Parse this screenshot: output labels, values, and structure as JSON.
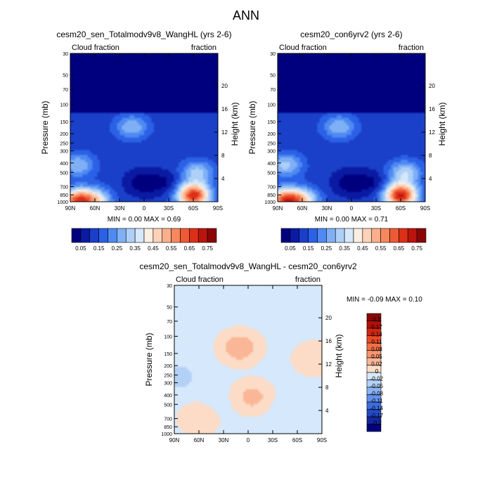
{
  "figure_title": "ANN",
  "chart_data": [
    {
      "type": "heatmap",
      "title": "cesm20_sen_Totalmodv9v8_WangHL (yrs 2-6)",
      "left_label": "Cloud fraction",
      "right_label": "fraction",
      "ylabel": "Pressure (mb)",
      "y2label": "Height (km)",
      "x_ticks": [
        "90N",
        "60N",
        "30N",
        "0",
        "30S",
        "60S",
        "90S"
      ],
      "y_ticks": [
        "30",
        "50",
        "70",
        "100",
        "150",
        "200",
        "250",
        "300",
        "400",
        "500",
        "700",
        "850",
        "1000"
      ],
      "y2_ticks": [
        "20",
        "16",
        "12",
        "8",
        "4"
      ],
      "xlim": [
        90,
        -90
      ],
      "ylim": [
        1000,
        30
      ],
      "stats_text": "MIN =   0.00   MAX =   0.69",
      "colorbar_labels": [
        "0.05",
        "0.15",
        "0.25",
        "0.35",
        "0.45",
        "0.55",
        "0.65",
        "0.75"
      ],
      "colorbar_colors": [
        "#00007f",
        "#0a1aa3",
        "#1a3fc8",
        "#2b61e6",
        "#4f8af2",
        "#7fb0f6",
        "#aed0f8",
        "#d6e8fb",
        "#fbeee2",
        "#fcd2b8",
        "#fbb08b",
        "#f7885e",
        "#ee5a33",
        "#dc2f18",
        "#bb140c",
        "#8a0606"
      ],
      "field_points": [
        {
          "lat": 82,
          "p": 970,
          "v": 0.58
        },
        {
          "lat": 60,
          "p": 960,
          "v": 0.4
        },
        {
          "lat": 15,
          "p": 170,
          "v": 0.3
        },
        {
          "lat": 3,
          "p": 640,
          "v": 0.02
        },
        {
          "lat": -25,
          "p": 640,
          "v": 0.04
        },
        {
          "lat": -60,
          "p": 860,
          "v": 0.69
        },
        {
          "lat": -65,
          "p": 500,
          "v": 0.32
        },
        {
          "lat": 80,
          "p": 420,
          "v": 0.3
        },
        {
          "lat": 0,
          "p": 60,
          "v": 0.02
        }
      ]
    },
    {
      "type": "heatmap",
      "title": "cesm20_con6yrv2 (yrs 2-6)",
      "left_label": "Cloud fraction",
      "right_label": "fraction",
      "ylabel": "Pressure (mb)",
      "y2label": "Height (km)",
      "x_ticks": [
        "90N",
        "60N",
        "30N",
        "0",
        "30S",
        "60S",
        "90S"
      ],
      "y_ticks": [
        "30",
        "50",
        "70",
        "100",
        "150",
        "200",
        "250",
        "300",
        "400",
        "500",
        "700",
        "850",
        "1000"
      ],
      "y2_ticks": [
        "20",
        "16",
        "12",
        "8",
        "4"
      ],
      "xlim": [
        90,
        -90
      ],
      "ylim": [
        1000,
        30
      ],
      "stats_text": "MIN =   0.00   MAX =   0.71",
      "colorbar_labels": [
        "0.05",
        "0.15",
        "0.25",
        "0.35",
        "0.45",
        "0.55",
        "0.65",
        "0.75"
      ],
      "colorbar_colors": [
        "#00007f",
        "#0a1aa3",
        "#1a3fc8",
        "#2b61e6",
        "#4f8af2",
        "#7fb0f6",
        "#aed0f8",
        "#d6e8fb",
        "#fbeee2",
        "#fcd2b8",
        "#fbb08b",
        "#f7885e",
        "#ee5a33",
        "#dc2f18",
        "#bb140c",
        "#8a0606"
      ],
      "field_points": [
        {
          "lat": 82,
          "p": 970,
          "v": 0.6
        },
        {
          "lat": 60,
          "p": 960,
          "v": 0.42
        },
        {
          "lat": 15,
          "p": 170,
          "v": 0.3
        },
        {
          "lat": 3,
          "p": 640,
          "v": 0.02
        },
        {
          "lat": -25,
          "p": 640,
          "v": 0.04
        },
        {
          "lat": -60,
          "p": 860,
          "v": 0.71
        },
        {
          "lat": -65,
          "p": 500,
          "v": 0.34
        },
        {
          "lat": 80,
          "p": 420,
          "v": 0.32
        },
        {
          "lat": 0,
          "p": 60,
          "v": 0.02
        }
      ]
    },
    {
      "type": "heatmap",
      "title": "cesm20_sen_Totalmodv9v8_WangHL - cesm20_con6yrv2",
      "left_label": "Cloud fraction",
      "right_label": "fraction",
      "ylabel": "Pressure (mb)",
      "y2label": "Height (km)",
      "x_ticks": [
        "90N",
        "60N",
        "30N",
        "0",
        "30S",
        "60S",
        "90S"
      ],
      "y_ticks": [
        "30",
        "50",
        "70",
        "100",
        "150",
        "200",
        "250",
        "300",
        "400",
        "500",
        "700",
        "850",
        "1000"
      ],
      "y2_ticks": [
        "20",
        "16",
        "12",
        "8",
        "4"
      ],
      "xlim": [
        90,
        -90
      ],
      "ylim": [
        1000,
        30
      ],
      "stats_text": "MIN =  -0.09   MAX =   0.10",
      "colorbar_labels": [
        "0.2",
        "0.17",
        "0.14",
        "0.11",
        "0.08",
        "0.05",
        "0.02",
        "0",
        "-0.02",
        "-0.05",
        "-0.08",
        "-0.11",
        "-0.14",
        "-0.17",
        "-0.2"
      ],
      "colorbar_colors": [
        "#8a0606",
        "#b0100a",
        "#d22612",
        "#ea4a26",
        "#f36f46",
        "#f7946e",
        "#fab696",
        "#fcdcc6",
        "#d6e8fb",
        "#b3d0f6",
        "#8ab2f1",
        "#6290ea",
        "#3b6cde",
        "#2249c4",
        "#12279e",
        "#00007f"
      ],
      "field_points": [
        {
          "lat": 10,
          "p": 130,
          "v": 0.04
        },
        {
          "lat": 60,
          "p": 700,
          "v": 0.02
        },
        {
          "lat": -5,
          "p": 420,
          "v": 0.03
        },
        {
          "lat": -80,
          "p": 170,
          "v": 0.02
        },
        {
          "lat": 85,
          "p": 260,
          "v": -0.03
        },
        {
          "lat": 40,
          "p": 500,
          "v": -0.01
        },
        {
          "lat": -40,
          "p": 550,
          "v": -0.01
        }
      ]
    }
  ]
}
